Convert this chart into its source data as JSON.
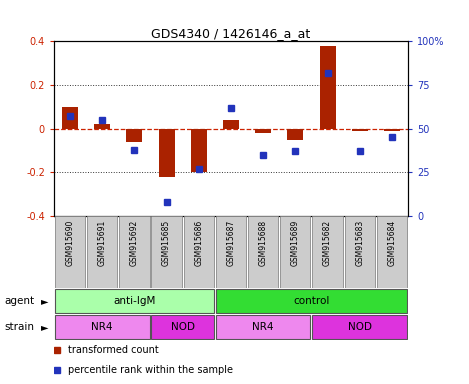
{
  "title": "GDS4340 / 1426146_a_at",
  "samples": [
    "GSM915690",
    "GSM915691",
    "GSM915692",
    "GSM915685",
    "GSM915686",
    "GSM915687",
    "GSM915688",
    "GSM915689",
    "GSM915682",
    "GSM915683",
    "GSM915684"
  ],
  "transformed_count": [
    0.1,
    0.02,
    -0.06,
    -0.22,
    -0.2,
    0.04,
    -0.02,
    -0.05,
    0.38,
    -0.01,
    -0.01
  ],
  "percentile_rank": [
    57,
    55,
    38,
    8,
    27,
    62,
    35,
    37,
    82,
    37,
    45
  ],
  "ylim_left": [
    -0.4,
    0.4
  ],
  "ylim_right": [
    0,
    100
  ],
  "yticks_left": [
    -0.4,
    -0.2,
    0.0,
    0.2,
    0.4
  ],
  "yticks_right": [
    0,
    25,
    50,
    75,
    100
  ],
  "ytick_labels_right": [
    "0",
    "25",
    "50",
    "75",
    "100%"
  ],
  "bar_color": "#aa2200",
  "dot_color": "#2233bb",
  "zero_line_color": "#cc2200",
  "grid_color": "#333333",
  "agent_groups": [
    {
      "label": "anti-IgM",
      "start": 0,
      "end": 5,
      "color": "#aaffaa"
    },
    {
      "label": "control",
      "start": 5,
      "end": 11,
      "color": "#33dd33"
    }
  ],
  "strain_groups": [
    {
      "label": "NR4",
      "start": 0,
      "end": 3,
      "color": "#ee88ee"
    },
    {
      "label": "NOD",
      "start": 3,
      "end": 5,
      "color": "#dd33dd"
    },
    {
      "label": "NR4",
      "start": 5,
      "end": 8,
      "color": "#ee88ee"
    },
    {
      "label": "NOD",
      "start": 8,
      "end": 11,
      "color": "#dd33dd"
    }
  ],
  "agent_label": "agent",
  "strain_label": "strain",
  "legend_red": "transformed count",
  "legend_blue": "percentile rank within the sample",
  "bg_color": "#ffffff",
  "plot_bg": "#ffffff",
  "sample_box_color": "#cccccc",
  "sample_box_edge": "#888888",
  "left_tick_color": "#cc2200",
  "right_tick_color": "#2233bb"
}
